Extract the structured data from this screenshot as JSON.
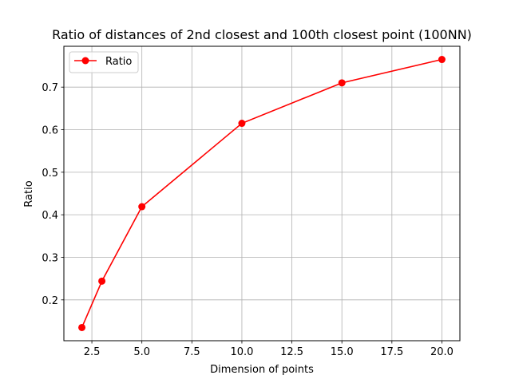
{
  "chart_data": {
    "type": "line",
    "title": "Ratio of distances of 2nd closest and 100th closest point (100NN)",
    "xlabel": "Dimension of points",
    "ylabel": "Ratio",
    "x": [
      2,
      3,
      5,
      10,
      15,
      20
    ],
    "series": [
      {
        "name": "Ratio",
        "values": [
          0.135,
          0.244,
          0.419,
          0.615,
          0.71,
          0.765
        ],
        "color": "#ff0000",
        "marker": "circle"
      }
    ],
    "xlim": [
      1.1,
      20.9
    ],
    "ylim": [
      0.104,
      0.796
    ],
    "xticks": [
      2.5,
      5.0,
      7.5,
      10.0,
      12.5,
      15.0,
      17.5,
      20.0
    ],
    "xtick_labels": [
      "2.5",
      "5.0",
      "7.5",
      "10.0",
      "12.5",
      "15.0",
      "17.5",
      "20.0"
    ],
    "yticks": [
      0.2,
      0.3,
      0.4,
      0.5,
      0.6,
      0.7
    ],
    "ytick_labels": [
      "0.2",
      "0.3",
      "0.4",
      "0.5",
      "0.6",
      "0.7"
    ],
    "grid": true,
    "legend_position": "top-left"
  }
}
